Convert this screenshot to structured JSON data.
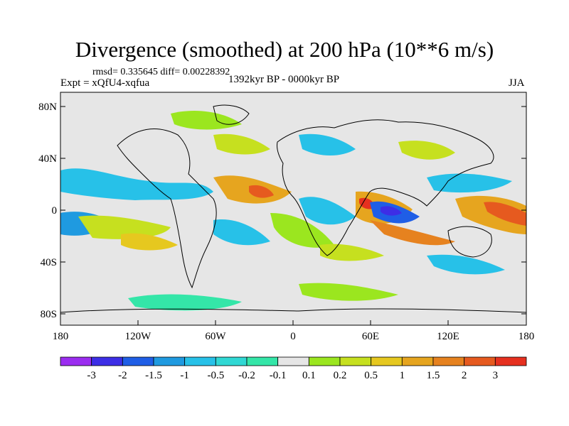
{
  "title": "Divergence (smoothed) at 200 hPa (10**6 m/s)",
  "stats": "rmsd= 0.335645 diff= 0.00228392",
  "experiment": "Expt = xQfU4-xqfua",
  "period": "1392kyr BP - 0000kyr BP",
  "season": "JJA",
  "lat_ticks": [
    "80N",
    "40N",
    "0",
    "40S",
    "80S"
  ],
  "lon_ticks": [
    "180",
    "120W",
    "60W",
    "0",
    "60E",
    "120E",
    "180"
  ],
  "colorbar": {
    "colors": [
      "#9b2df0",
      "#3d2ee6",
      "#1f5ee6",
      "#1f9ae0",
      "#27c1e8",
      "#30d8d4",
      "#34e6a8",
      "#e6e6e6",
      "#9be61f",
      "#c6e01f",
      "#e6c81f",
      "#e6a51f",
      "#e6821f",
      "#e65a1f",
      "#e6301f"
    ],
    "labels": [
      "-3",
      "-2",
      "-1.5",
      "-1",
      "-0.5",
      "-0.2",
      "-0.1",
      "0.1",
      "0.2",
      "0.5",
      "1",
      "1.5",
      "2",
      "3"
    ]
  }
}
